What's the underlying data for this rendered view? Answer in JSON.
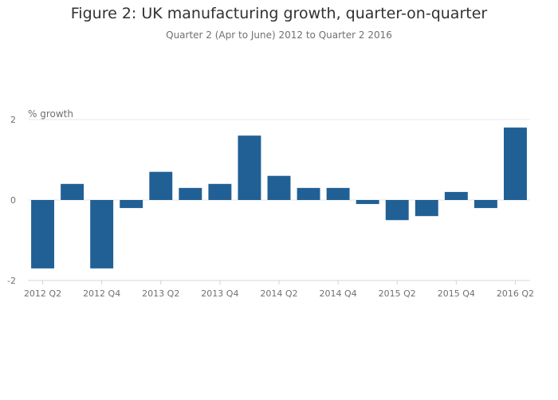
{
  "title": "Figure 2: UK manufacturing growth, quarter-on-quarter",
  "subtitle": "Quarter 2 (Apr to June) 2012 to Quarter 2 2016",
  "chart_data": {
    "type": "bar",
    "title": "Figure 2: UK manufacturing growth, quarter-on-quarter",
    "subtitle": "Quarter 2 (Apr to June) 2012 to Quarter 2 2016",
    "ylabel": "% growth",
    "xlabel": "",
    "ylim": [
      -2,
      2
    ],
    "yticks": [
      2,
      0,
      -2
    ],
    "grid": true,
    "bar_color": "#206095",
    "categories": [
      "2012 Q2",
      "2012 Q3",
      "2012 Q4",
      "2013 Q1",
      "2013 Q2",
      "2013 Q3",
      "2013 Q4",
      "2014 Q1",
      "2014 Q2",
      "2014 Q3",
      "2014 Q4",
      "2015 Q1",
      "2015 Q2",
      "2015 Q3",
      "2015 Q4",
      "2016 Q1",
      "2016 Q2"
    ],
    "xtick_labels": [
      "2012 Q2",
      "2012 Q4",
      "2013 Q2",
      "2013 Q4",
      "2014 Q2",
      "2014 Q4",
      "2015 Q2",
      "2015 Q4",
      "2016 Q2"
    ],
    "values": [
      -1.7,
      0.4,
      -1.7,
      -0.2,
      0.7,
      0.3,
      0.4,
      1.6,
      0.6,
      0.3,
      0.3,
      -0.1,
      -0.5,
      -0.4,
      0.2,
      -0.2,
      1.8
    ]
  }
}
